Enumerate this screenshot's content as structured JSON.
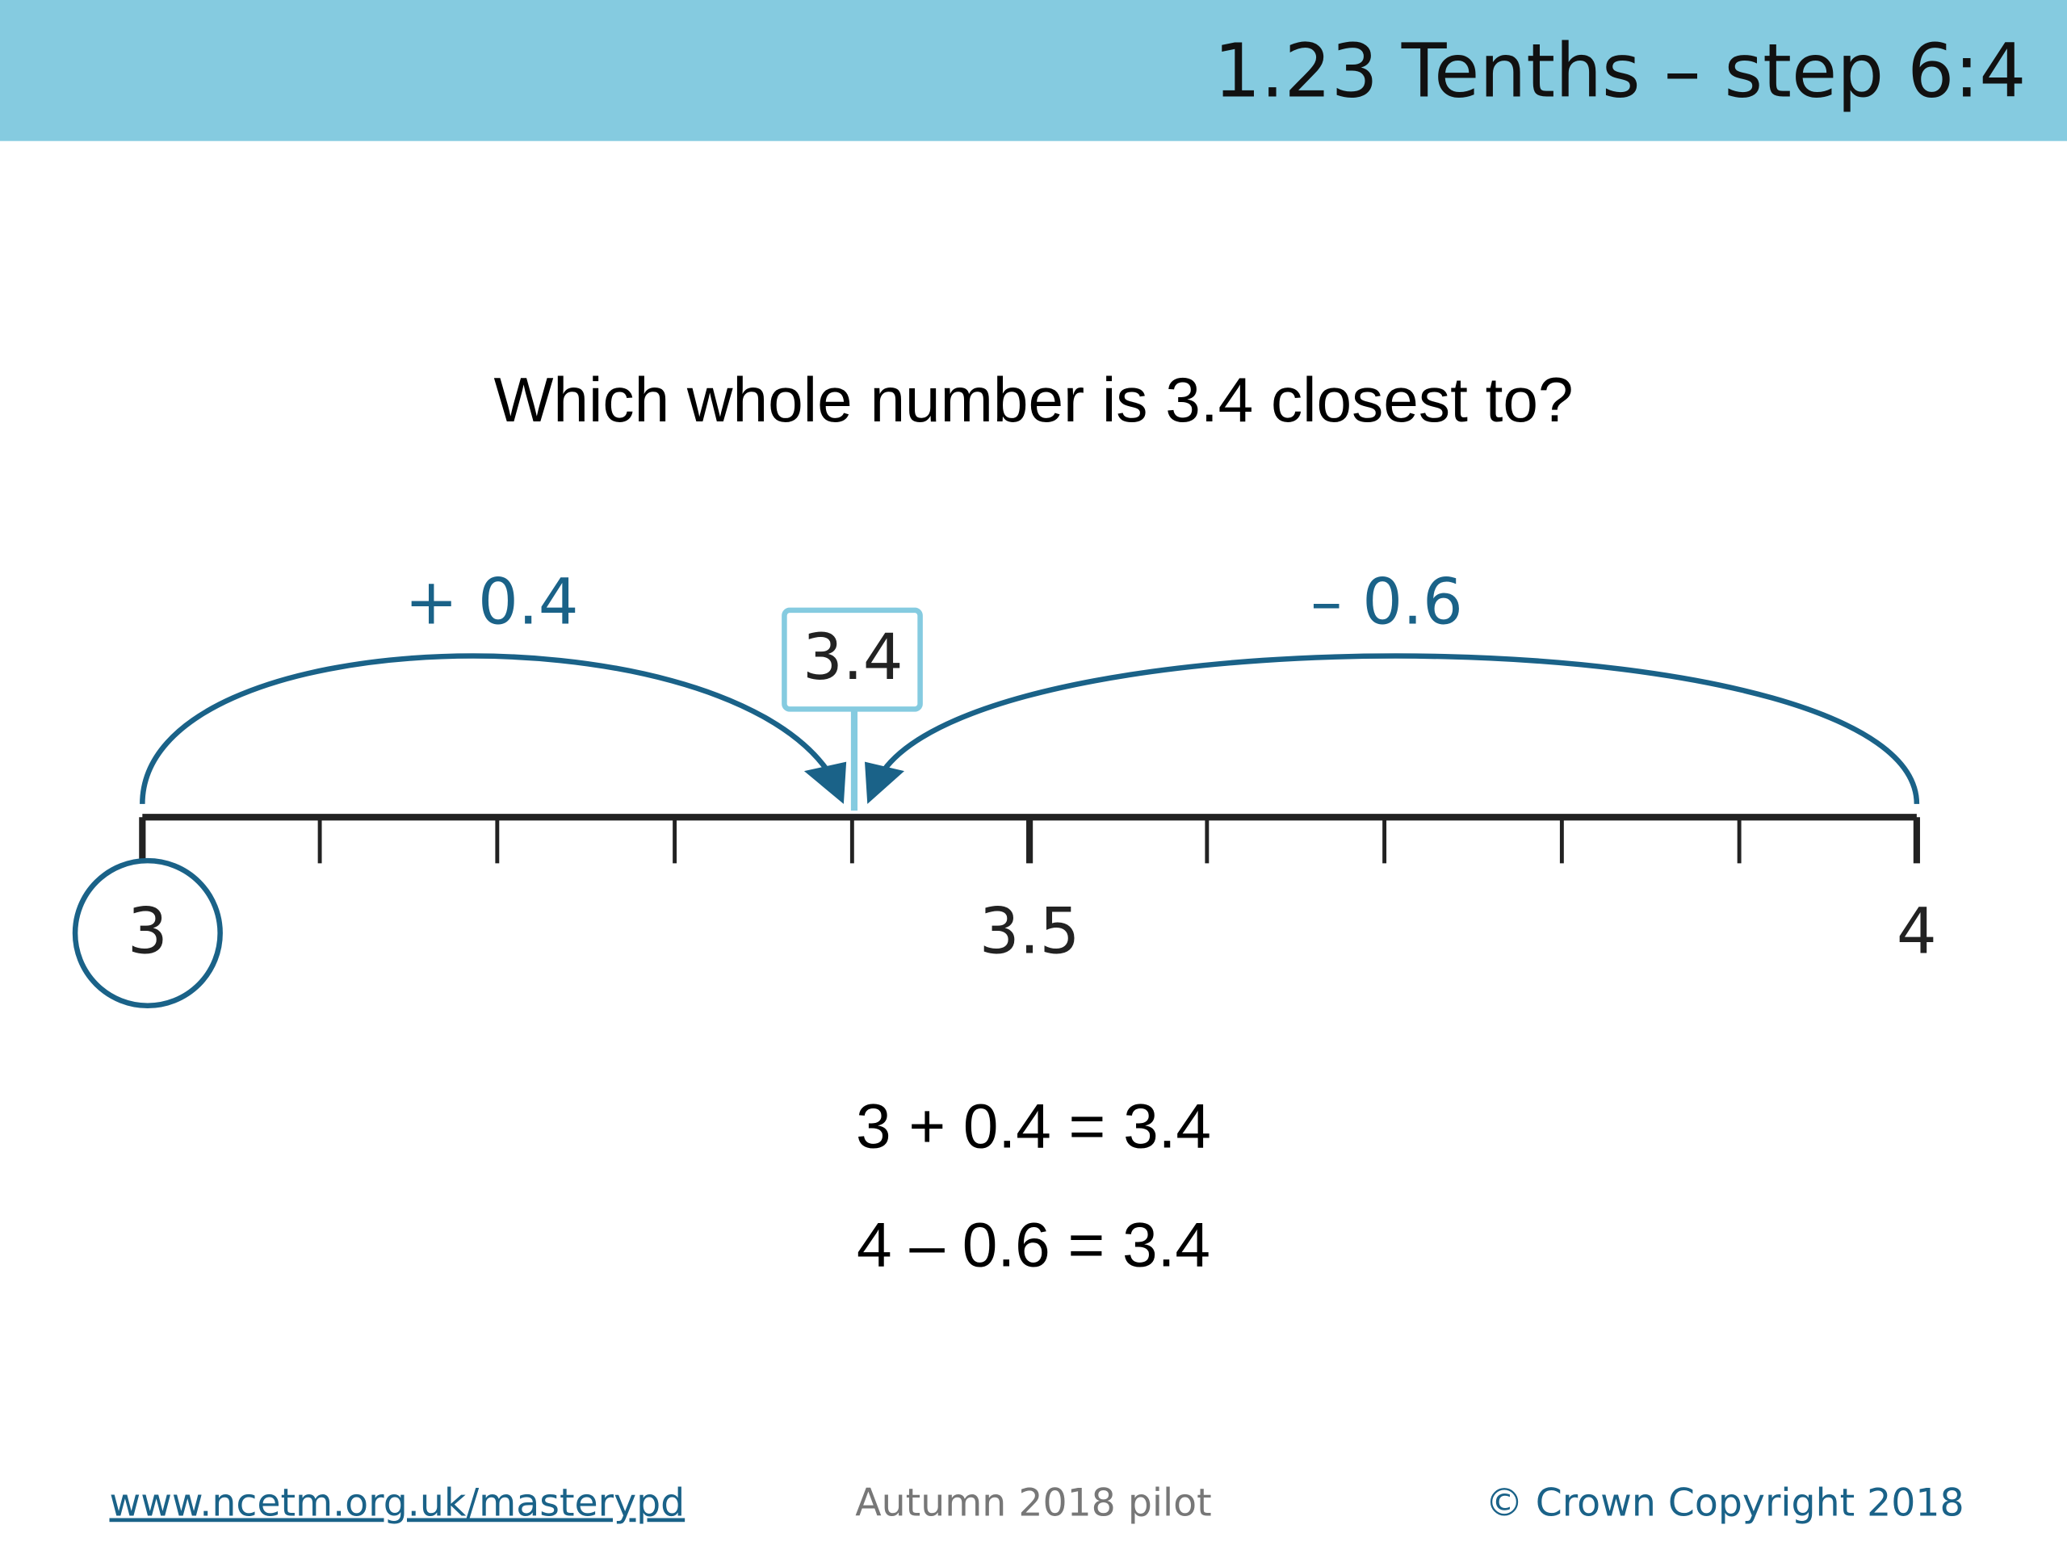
{
  "header": {
    "title": "1.23 Tenths – step 6:4"
  },
  "question": "Which whole number is 3.4 closest to?",
  "number_line": {
    "jumps": [
      "+ 0.4",
      "– 0.6"
    ],
    "marker": "3.4",
    "labels": [
      "3",
      "3.5",
      "4"
    ]
  },
  "equations": [
    "3 + 0.4 = 3.4",
    "4 – 0.6 = 3.4"
  ],
  "footer": {
    "link": "www.ncetm.org.uk/masterypd",
    "center": "Autumn 2018 pilot",
    "right": "© Crown Copyright 2018"
  }
}
